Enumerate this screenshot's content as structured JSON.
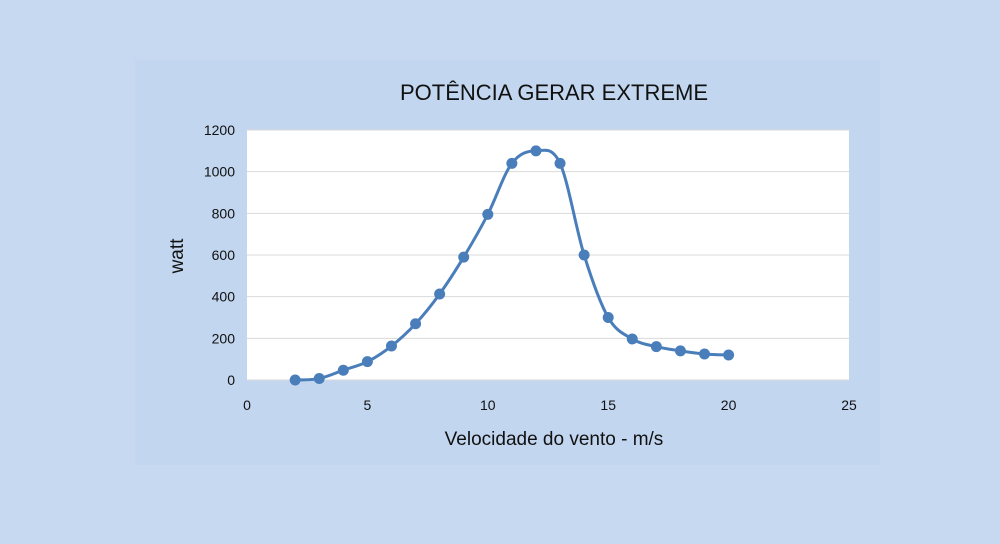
{
  "chart_data": {
    "type": "scatter",
    "title": "POTÊNCIA  GERAR EXTREME",
    "xlabel": "Velocidade do vento - m/s",
    "ylabel": "watt",
    "xlim": [
      0,
      25
    ],
    "ylim": [
      0,
      1200
    ],
    "xticks": [
      0,
      5,
      10,
      15,
      20,
      25
    ],
    "yticks": [
      0,
      200,
      400,
      600,
      800,
      1000,
      1200
    ],
    "grid": "horizontal",
    "smooth_line": true,
    "series": [
      {
        "color": "#4a7ebb",
        "x": [
          2,
          3,
          4,
          5,
          6,
          7,
          8,
          9,
          10,
          11,
          12,
          13,
          14,
          15,
          16,
          17,
          18,
          19,
          20
        ],
        "y": [
          0,
          7,
          47,
          88,
          163,
          270,
          413,
          590,
          795,
          1040,
          1100,
          1040,
          600,
          300,
          197,
          160,
          140,
          125,
          120
        ]
      }
    ]
  }
}
